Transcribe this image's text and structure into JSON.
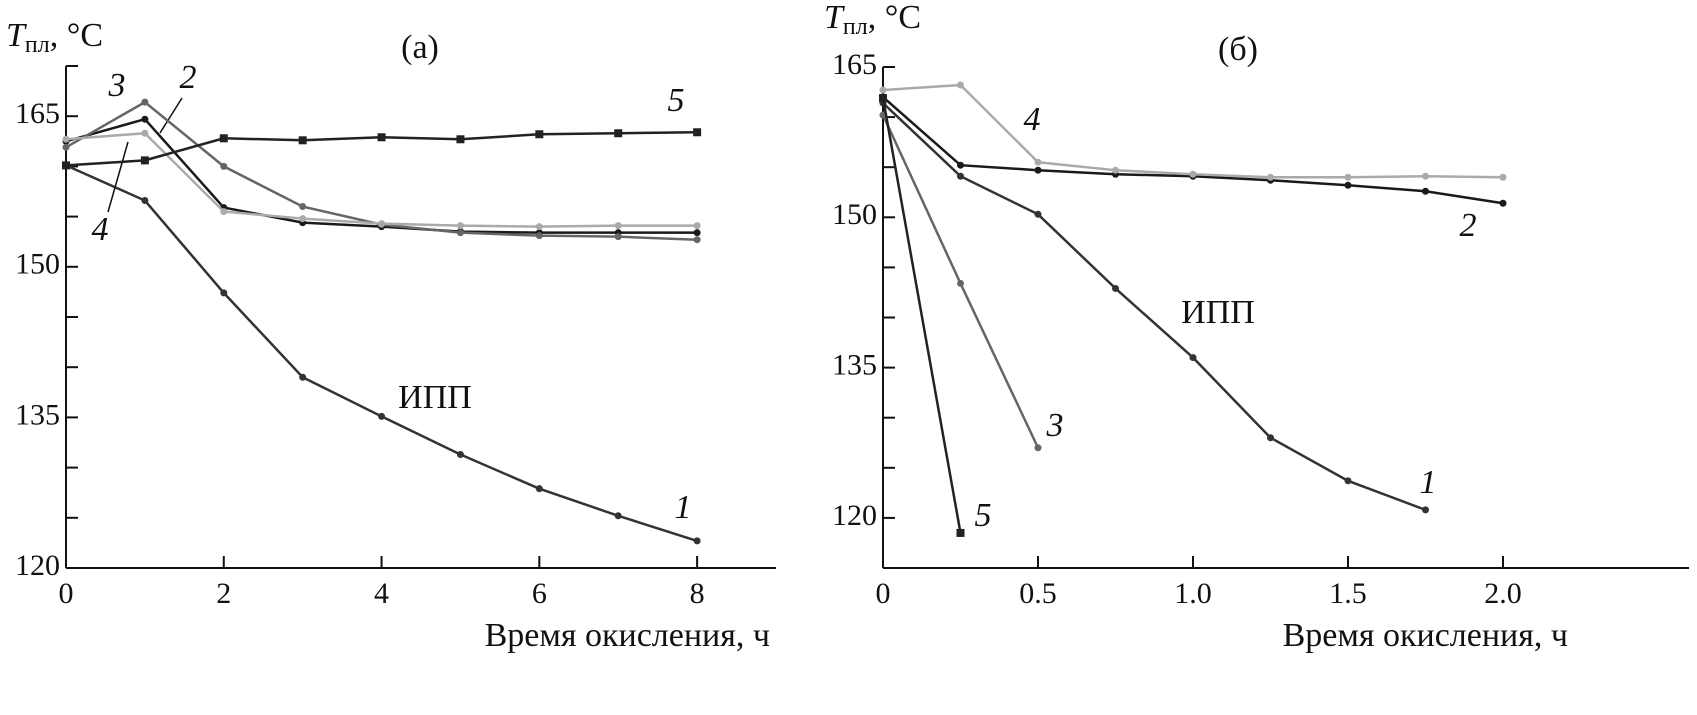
{
  "chart_data": [
    {
      "type": "line",
      "title": "(а)",
      "ylabel": {
        "symbol": "T",
        "subscript": "пл",
        "unit": ", °C"
      },
      "xlabel": "Время окисления, ч",
      "annotation": "ИПП",
      "x": [
        0,
        1,
        2,
        3,
        4,
        5,
        6,
        7,
        8
      ],
      "series": [
        {
          "name": "1",
          "color": "#333333",
          "marker": "circle",
          "values": [
            160.1,
            156.6,
            147.4,
            139.0,
            135.1,
            131.3,
            127.9,
            125.2,
            122.7
          ]
        },
        {
          "name": "2",
          "color": "#1a1a1a",
          "marker": "circle",
          "values": [
            162.5,
            164.7,
            155.9,
            154.4,
            154.0,
            153.5,
            153.4,
            153.4,
            153.4
          ]
        },
        {
          "name": "3",
          "color": "#666666",
          "marker": "circle",
          "values": [
            161.9,
            166.4,
            160.0,
            156.0,
            154.2,
            153.4,
            153.1,
            153.0,
            152.7
          ]
        },
        {
          "name": "4",
          "color": "#aaaaaa",
          "marker": "circle",
          "values": [
            162.7,
            163.3,
            155.5,
            154.8,
            154.3,
            154.1,
            154.0,
            154.1,
            154.1
          ]
        },
        {
          "name": "5",
          "color": "#222222",
          "marker": "square",
          "values": [
            160.1,
            160.6,
            162.8,
            162.6,
            162.9,
            162.7,
            163.2,
            163.3,
            163.4
          ]
        }
      ],
      "xlim": [
        0,
        9
      ],
      "ylim": [
        120,
        170
      ],
      "xticks": [
        0,
        2,
        4,
        6,
        8
      ],
      "yticks": [
        120,
        135,
        150,
        165
      ],
      "yminor_ticks": [
        125,
        130,
        140,
        145,
        155,
        160,
        170
      ]
    },
    {
      "type": "line",
      "title": "(б)",
      "ylabel": {
        "symbol": "T",
        "subscript": "пл",
        "unit": ", °C"
      },
      "xlabel": "Время окисления, ч",
      "annotation": "ИПП",
      "x": [
        0,
        0.25,
        0.5,
        0.75,
        1.0,
        1.25,
        1.5,
        1.75,
        2.0
      ],
      "series": [
        {
          "name": "1",
          "color": "#333333",
          "marker": "circle",
          "values": [
            161.4,
            154.1,
            150.3,
            142.9,
            136.0,
            128.0,
            123.7,
            120.8,
            null
          ]
        },
        {
          "name": "2",
          "color": "#1a1a1a",
          "marker": "circle",
          "values": [
            162.0,
            155.2,
            154.7,
            154.3,
            154.1,
            153.7,
            153.2,
            152.6,
            151.4
          ]
        },
        {
          "name": "3",
          "color": "#666666",
          "marker": "circle",
          "values": [
            160.2,
            143.4,
            127.0,
            null,
            null,
            null,
            null,
            null,
            null
          ]
        },
        {
          "name": "4",
          "color": "#aaaaaa",
          "marker": "circle",
          "values": [
            162.7,
            163.2,
            155.5,
            154.7,
            154.3,
            154.0,
            154.0,
            154.1,
            154.0
          ]
        },
        {
          "name": "5",
          "color": "#222222",
          "marker": "square",
          "values": [
            161.9,
            118.5,
            null,
            null,
            null,
            null,
            null,
            null,
            null
          ]
        }
      ],
      "xlim": [
        0,
        2.6
      ],
      "ylim": [
        115,
        165
      ],
      "xticks": [
        0,
        0.5,
        {
          "value": 1,
          "label": "1.0"
        },
        1.5,
        {
          "value": 2,
          "label": "2.0"
        }
      ],
      "yticks": [
        120,
        135,
        150,
        165
      ],
      "yminor_ticks": [
        125,
        130,
        140,
        145,
        155,
        160
      ]
    }
  ]
}
